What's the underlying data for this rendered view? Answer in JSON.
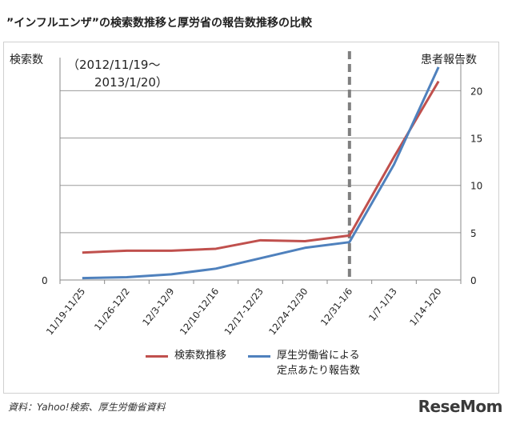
{
  "title": "”インフルエンザ”の検索数推移と厚労省の報告数推移の比較",
  "source": "資料：Yahoo!検索、厚生労働省資料",
  "logo": "ReseMom",
  "period_line1": "（2012/11/19〜",
  "period_line2": "2013/1/20）",
  "chart_data": {
    "type": "line",
    "ylabel_left": "検索数",
    "ylabel_right": "患者報告数",
    "left_axis_ticks": [
      "0"
    ],
    "right_axis_ticks": [
      0,
      5,
      10,
      15,
      20
    ],
    "ylim_right": [
      0,
      23.5
    ],
    "categories": [
      "11/19-11/25",
      "11/26-12/2",
      "12/3-12/9",
      "12/10-12/16",
      "12/17-12/23",
      "12/24-12/30",
      "12/31-1/6",
      "1/7-1/13",
      "1/14-1/20"
    ],
    "marker_after_category": "12/31-1/6",
    "series": [
      {
        "name": "検索数推移",
        "color": "#c0504d",
        "values": [
          2.9,
          3.1,
          3.1,
          3.3,
          4.2,
          4.1,
          4.7,
          13.0,
          21.0
        ]
      },
      {
        "name_line1": "厚生労働省による",
        "name_line2": "定点あたり報告数",
        "color": "#4f81bd",
        "values": [
          0.2,
          0.3,
          0.6,
          1.2,
          2.3,
          3.4,
          4.0,
          12.2,
          22.5
        ]
      }
    ],
    "grid": "horizontal"
  },
  "colors": {
    "red_series": "#c0504d",
    "blue_series": "#4f81bd",
    "marker": "#808080"
  }
}
